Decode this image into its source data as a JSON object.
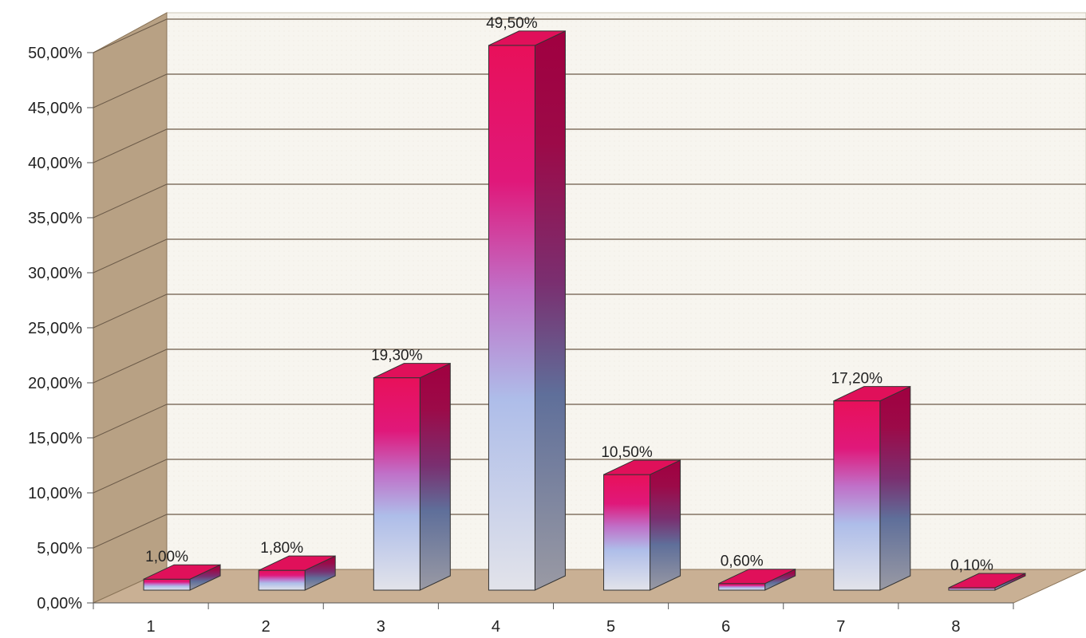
{
  "chart_data": {
    "type": "bar",
    "categories": [
      "1",
      "2",
      "3",
      "4",
      "5",
      "6",
      "7",
      "8"
    ],
    "values": [
      1.0,
      1.8,
      19.3,
      49.5,
      10.5,
      0.6,
      17.2,
      0.1
    ],
    "data_labels": [
      "1,00%",
      "1,80%",
      "19,30%",
      "49,50%",
      "10,50%",
      "0,60%",
      "17,20%",
      "0,10%"
    ],
    "y_ticks": [
      "0,00%",
      "5,00%",
      "10,00%",
      "15,00%",
      "20,00%",
      "25,00%",
      "30,00%",
      "35,00%",
      "40,00%",
      "45,00%",
      "50,00%"
    ],
    "ylim": [
      0,
      50
    ],
    "y_unit": "%",
    "grid": true,
    "legend": "none",
    "style": "3d-column",
    "title": "",
    "xlabel": "",
    "ylabel": ""
  },
  "colors": {
    "bar_top": "#e0105a",
    "bar_mid": "#a8b8e8",
    "bar_bottom": "#dcdde6",
    "bar_side_dark": "#8a0030",
    "wall_back": "#f6f3ec",
    "wall_side": "#b8a184",
    "floor": "#c9b094",
    "gridline": "#6b5a48"
  }
}
